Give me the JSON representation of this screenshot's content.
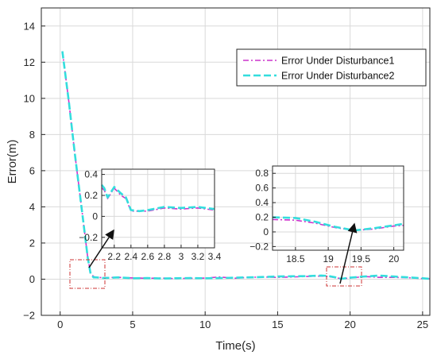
{
  "chart_data": {
    "type": "line",
    "xlabel": "Time(s)",
    "ylabel": "Error(m)",
    "xlim": [
      -1.3,
      25.5
    ],
    "ylim": [
      -2,
      15
    ],
    "xticks": [
      "0",
      "5",
      "10",
      "15",
      "20",
      "25"
    ],
    "yticks": [
      "−2",
      "0",
      "2",
      "4",
      "6",
      "8",
      "10",
      "12",
      "14"
    ],
    "grid": true,
    "legend_position": "top-right",
    "series": [
      {
        "name": "Error Under Disturbance1",
        "style": "dash-dot",
        "color": "#cc33cc",
        "x": [
          0.15,
          0.6,
          1.0,
          1.5,
          1.9,
          2.1,
          2.3,
          2.5,
          3,
          4,
          5,
          6,
          7,
          8,
          9,
          10,
          11,
          12,
          13,
          14,
          15,
          16,
          17,
          18,
          18.5,
          19,
          19.4,
          20,
          21,
          22,
          23,
          24,
          25,
          25.5
        ],
        "y": [
          12.6,
          9.8,
          7.0,
          3.8,
          1.2,
          0.35,
          0.15,
          0.1,
          0.08,
          0.1,
          0.07,
          0.05,
          0.06,
          0.03,
          0.05,
          0.06,
          0.12,
          0.05,
          0.1,
          0.12,
          0.1,
          0.12,
          0.15,
          0.17,
          0.15,
          0.08,
          0.03,
          0.06,
          0.15,
          0.1,
          0.1,
          0.08,
          0.03,
          0.02
        ]
      },
      {
        "name": "Error Under Disturbance2",
        "style": "dashed",
        "color": "#33dddd",
        "x": [
          0.15,
          0.6,
          1.0,
          1.5,
          1.9,
          2.1,
          2.3,
          2.5,
          3,
          4,
          5,
          6,
          7,
          8,
          9,
          10,
          11,
          12,
          13,
          14,
          15,
          16,
          17,
          18,
          18.5,
          19,
          19.4,
          20,
          21,
          22,
          23,
          24,
          25,
          25.5
        ],
        "y": [
          12.6,
          9.8,
          7.0,
          3.8,
          1.2,
          0.3,
          0.1,
          0.1,
          0.06,
          0.1,
          0.05,
          0.06,
          0.04,
          0.05,
          0.06,
          0.05,
          0.06,
          0.08,
          0.1,
          0.12,
          0.15,
          0.16,
          0.17,
          0.2,
          0.18,
          0.1,
          0.02,
          0.08,
          0.15,
          0.2,
          0.15,
          0.1,
          0.05,
          0.02
        ]
      }
    ],
    "insets": [
      {
        "xlim": [
          2.05,
          3.4
        ],
        "ylim": [
          -0.3,
          0.45
        ],
        "xticks": [
          "2.2",
          "2.4",
          "2.6",
          "2.8",
          "3",
          "3.2",
          "3.4"
        ],
        "yticks": [
          "−0.2",
          "0",
          "0.2",
          "0.4"
        ],
        "series": [
          {
            "x": [
              2.05,
              2.08,
              2.12,
              2.2,
              2.28,
              2.34,
              2.4,
              2.5,
              2.6,
              2.8,
              3.0,
              3.2,
              3.4
            ],
            "y": [
              0.27,
              0.25,
              0.17,
              0.27,
              0.2,
              0.17,
              0.05,
              0.05,
              0.05,
              0.08,
              0.07,
              0.08,
              0.06
            ]
          },
          {
            "x": [
              2.05,
              2.08,
              2.12,
              2.2,
              2.28,
              2.34,
              2.4,
              2.5,
              2.6,
              2.8,
              3.0,
              3.2,
              3.4
            ],
            "y": [
              0.3,
              0.27,
              0.18,
              0.28,
              0.22,
              0.18,
              0.06,
              0.05,
              0.06,
              0.09,
              0.08,
              0.09,
              0.07
            ]
          }
        ]
      },
      {
        "xlim": [
          18.15,
          20.15
        ],
        "ylim": [
          -0.25,
          0.9
        ],
        "xticks": [
          "18.5",
          "19",
          "19.5",
          "20"
        ],
        "yticks": [
          "−0.2",
          "0",
          "0.2",
          "0.4",
          "0.6",
          "0.8"
        ],
        "series": [
          {
            "x": [
              18.15,
              18.5,
              18.8,
              19.1,
              19.4,
              19.7,
              20.0,
              20.15
            ],
            "y": [
              0.17,
              0.16,
              0.12,
              0.06,
              0.02,
              0.04,
              0.08,
              0.09
            ]
          },
          {
            "x": [
              18.15,
              18.5,
              18.8,
              19.1,
              19.4,
              19.7,
              20.0,
              20.15
            ],
            "y": [
              0.2,
              0.19,
              0.14,
              0.07,
              0.02,
              0.05,
              0.09,
              0.11
            ]
          }
        ]
      }
    ]
  },
  "colors": {
    "grid": "#d9d9d9",
    "axis": "#262626",
    "zoom_box": "#cc3333",
    "arrow": "#111111"
  }
}
